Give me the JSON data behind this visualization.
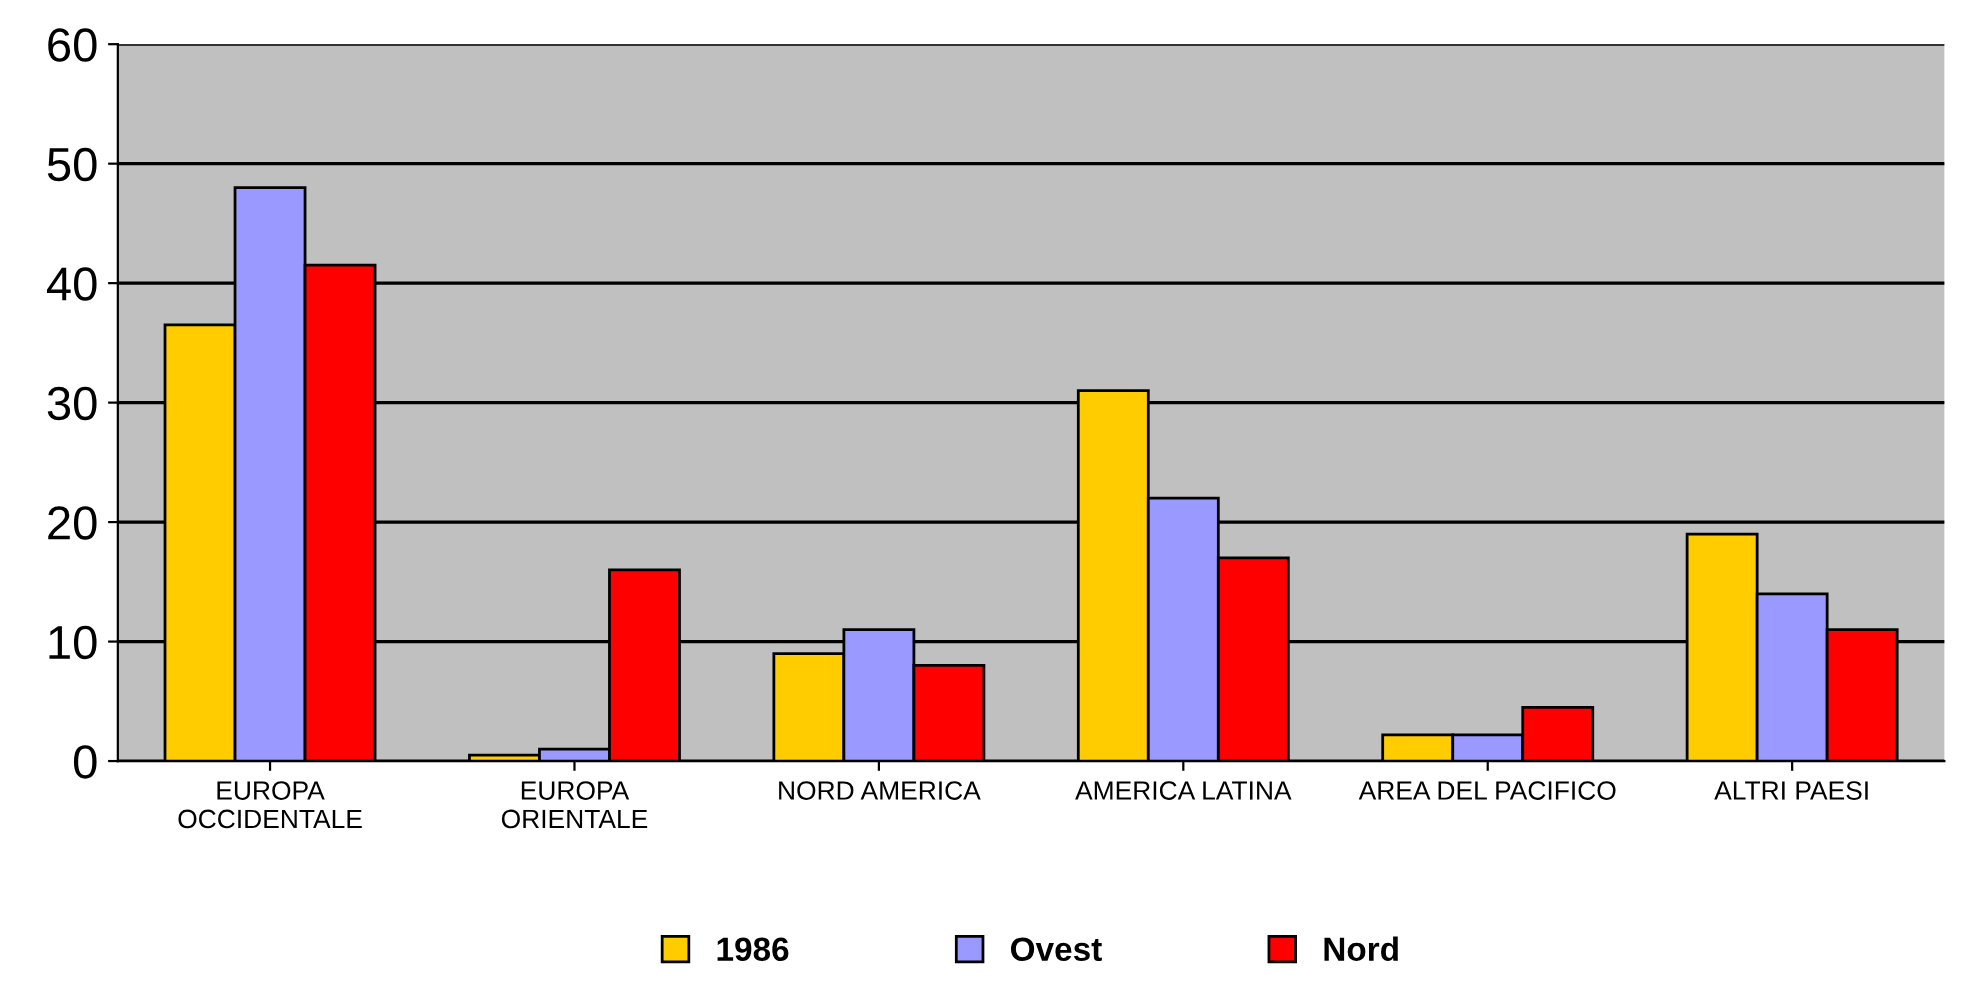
{
  "chart_data": {
    "type": "bar",
    "categories": [
      "EUROPA\nOCCIDENTALE",
      "EUROPA\nORIENTALE",
      "NORD AMERICA",
      "AMERICA LATINA",
      "AREA DEL PACIFICO",
      "ALTRI PAESI"
    ],
    "series": [
      {
        "name": "1986",
        "color": "#ffcc00",
        "values": [
          36.5,
          0.5,
          9,
          31,
          2.2,
          19
        ]
      },
      {
        "name": "Ovest",
        "color": "#9999ff",
        "values": [
          48,
          1,
          11,
          22,
          2.2,
          14
        ]
      },
      {
        "name": "Nord",
        "color": "#ff0000",
        "values": [
          41.5,
          16,
          8,
          17,
          4.5,
          11
        ]
      }
    ],
    "ylim": [
      0,
      60
    ],
    "yticks": [
      0,
      10,
      20,
      30,
      40,
      50,
      60
    ],
    "grid": "y",
    "legend": "bottom"
  }
}
